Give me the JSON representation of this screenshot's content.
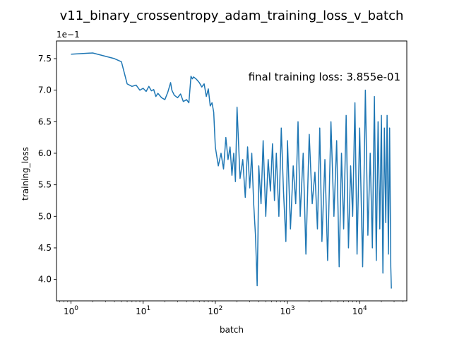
{
  "chart_data": {
    "type": "line",
    "title": "v11_binary_crossentropy_adam_training_loss_v_batch",
    "xlabel": "batch",
    "ylabel": "training_loss",
    "x_scale": "log",
    "xlim": [
      0.63,
      45000
    ],
    "ylim": [
      0.366,
      0.778
    ],
    "y_offset_label": "1e−1",
    "x_ticks": [
      {
        "value": 1,
        "base": "10",
        "exp": "0"
      },
      {
        "value": 10,
        "base": "10",
        "exp": "1"
      },
      {
        "value": 100,
        "base": "10",
        "exp": "2"
      },
      {
        "value": 1000,
        "base": "10",
        "exp": "3"
      },
      {
        "value": 10000,
        "base": "10",
        "exp": "4"
      }
    ],
    "y_ticks": [
      {
        "value": 0.4,
        "label": "4.0"
      },
      {
        "value": 0.45,
        "label": "4.5"
      },
      {
        "value": 0.5,
        "label": "5.0"
      },
      {
        "value": 0.55,
        "label": "5.5"
      },
      {
        "value": 0.6,
        "label": "6.0"
      },
      {
        "value": 0.65,
        "label": "6.5"
      },
      {
        "value": 0.7,
        "label": "7.0"
      },
      {
        "value": 0.75,
        "label": "7.5"
      }
    ],
    "annotation": "final training loss: 3.855e-01",
    "series": [
      {
        "color": "#1f77b4",
        "x": [
          1,
          2,
          4,
          5,
          6,
          7,
          8,
          9,
          10,
          11,
          12,
          13,
          14,
          15,
          16,
          18,
          20,
          22,
          24,
          25,
          27,
          30,
          33,
          36,
          40,
          43,
          46,
          48,
          50,
          55,
          60,
          65,
          70,
          75,
          80,
          85,
          90,
          95,
          100,
          110,
          120,
          130,
          140,
          150,
          160,
          170,
          180,
          190,
          200,
          220,
          240,
          260,
          280,
          300,
          320,
          340,
          360,
          370,
          380,
          390,
          400,
          430,
          460,
          500,
          540,
          580,
          620,
          660,
          700,
          760,
          820,
          880,
          950,
          1000,
          1100,
          1200,
          1300,
          1400,
          1500,
          1650,
          1800,
          2000,
          2200,
          2400,
          2600,
          2800,
          3000,
          3300,
          3600,
          4000,
          4400,
          4800,
          5200,
          5600,
          6000,
          6500,
          7000,
          7500,
          8000,
          8600,
          9200,
          10000,
          11000,
          12000,
          13000,
          14000,
          15000,
          16000,
          17000,
          18000,
          19000,
          20000,
          21000,
          22000,
          23000,
          24000,
          25000,
          26000,
          27000,
          27500
        ],
        "y": [
          0.757,
          0.759,
          0.75,
          0.745,
          0.71,
          0.706,
          0.708,
          0.7,
          0.703,
          0.698,
          0.706,
          0.699,
          0.701,
          0.69,
          0.695,
          0.688,
          0.685,
          0.697,
          0.712,
          0.7,
          0.692,
          0.688,
          0.694,
          0.682,
          0.685,
          0.68,
          0.722,
          0.718,
          0.721,
          0.717,
          0.712,
          0.705,
          0.71,
          0.69,
          0.702,
          0.675,
          0.68,
          0.665,
          0.61,
          0.58,
          0.6,
          0.575,
          0.625,
          0.59,
          0.61,
          0.565,
          0.6,
          0.555,
          0.673,
          0.56,
          0.59,
          0.53,
          0.61,
          0.545,
          0.6,
          0.52,
          0.47,
          0.43,
          0.39,
          0.47,
          0.58,
          0.52,
          0.62,
          0.5,
          0.59,
          0.54,
          0.615,
          0.525,
          0.6,
          0.5,
          0.64,
          0.54,
          0.46,
          0.62,
          0.48,
          0.58,
          0.52,
          0.65,
          0.5,
          0.6,
          0.44,
          0.63,
          0.52,
          0.57,
          0.48,
          0.64,
          0.46,
          0.59,
          0.43,
          0.65,
          0.5,
          0.62,
          0.42,
          0.6,
          0.48,
          0.66,
          0.45,
          0.58,
          0.5,
          0.68,
          0.44,
          0.64,
          0.42,
          0.7,
          0.47,
          0.6,
          0.45,
          0.69,
          0.43,
          0.65,
          0.48,
          0.66,
          0.41,
          0.64,
          0.49,
          0.66,
          0.44,
          0.64,
          0.42,
          0.3855
        ]
      }
    ]
  }
}
